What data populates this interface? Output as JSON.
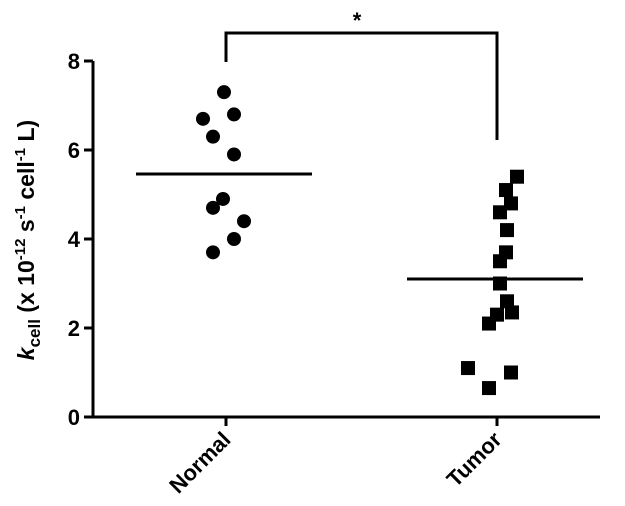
{
  "chart_data": {
    "type": "strip",
    "annotation": "*",
    "ylabel": {
      "k": "k",
      "sub": "cell",
      "text1": " (x 10",
      "sup1": "-12",
      "text2": " s",
      "sup2": "-1",
      "text3": " cell",
      "sup3": "-1",
      "text4": " L)"
    },
    "categories": [
      "Normal",
      "Tumor"
    ],
    "series": [
      {
        "color": "#000000",
        "marker": "circle",
        "mean": 5.46,
        "values": [
          7.3,
          6.7,
          6.8,
          6.3,
          5.9,
          4.9,
          4.7,
          4.4,
          4.0,
          3.7
        ]
      },
      {
        "color": "#000000",
        "marker": "square",
        "mean": 3.1,
        "values": [
          5.4,
          5.1,
          4.8,
          4.6,
          4.2,
          3.7,
          3.5,
          3.0,
          2.6,
          2.35,
          2.3,
          2.1,
          1.1,
          1.0,
          0.65
        ]
      }
    ],
    "ylim": [
      0,
      8
    ],
    "yticks": [
      0,
      2,
      4,
      6,
      8
    ]
  }
}
